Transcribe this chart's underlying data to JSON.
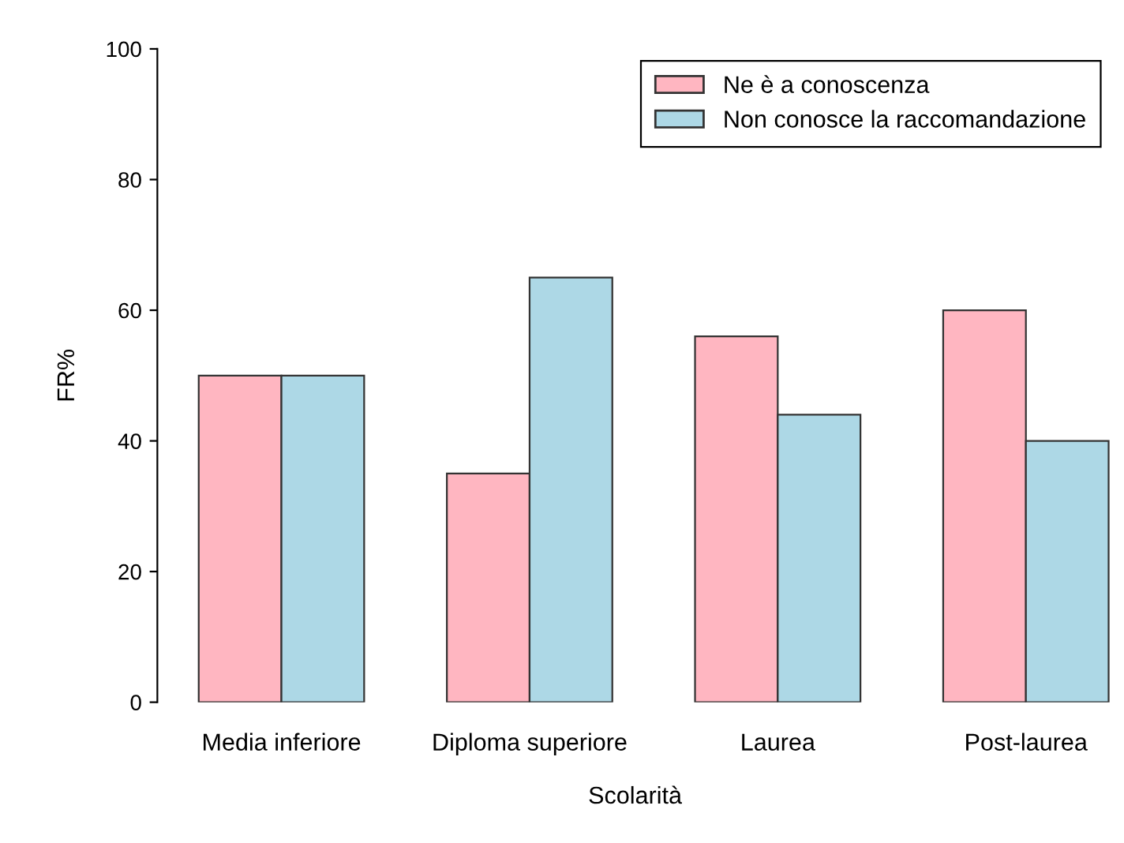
{
  "chart_data": {
    "type": "bar",
    "xlabel": "Scolarità",
    "ylabel": "FR%",
    "categories": [
      "Media inferiore",
      "Diploma superiore",
      "Laurea",
      "Post-laurea"
    ],
    "series": [
      {
        "name": "Ne è a conoscenza",
        "color": "#ffb6c1",
        "values": [
          50,
          35,
          56,
          60
        ]
      },
      {
        "name": "Non conosce la raccomandazione",
        "color": "#add8e6",
        "values": [
          50,
          65,
          44,
          40
        ]
      }
    ],
    "ylim": [
      0,
      100
    ],
    "yticks": [
      0,
      20,
      40,
      60,
      80,
      100
    ],
    "grid": false,
    "legend": "top right"
  }
}
